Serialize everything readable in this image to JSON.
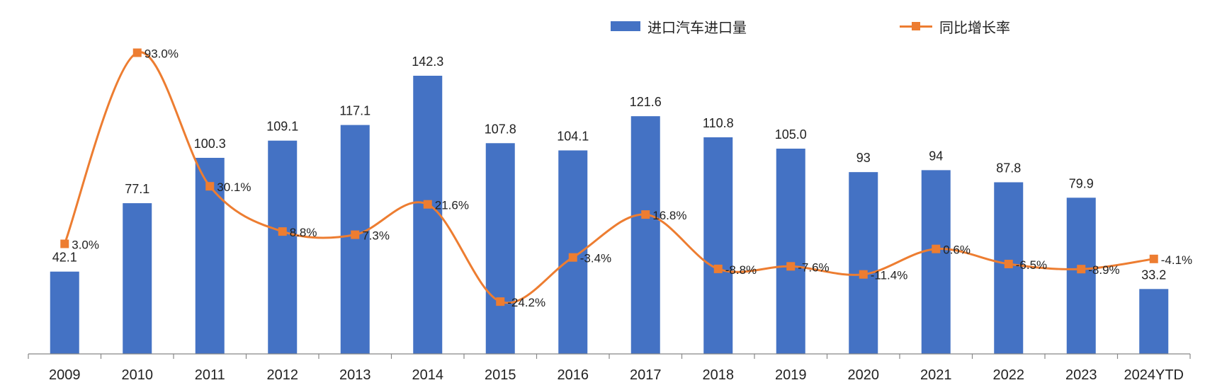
{
  "chart_data": {
    "type": "bar",
    "categories": [
      "2009",
      "2010",
      "2011",
      "2012",
      "2013",
      "2014",
      "2015",
      "2016",
      "2017",
      "2018",
      "2019",
      "2020",
      "2021",
      "2022",
      "2023",
      "2024YTD"
    ],
    "series": [
      {
        "name": "进口汽车进口量",
        "type": "bar",
        "color": "#4472c4",
        "values": [
          42.1,
          77.1,
          100.3,
          109.1,
          117.1,
          142.3,
          107.8,
          104.1,
          121.6,
          110.8,
          105.0,
          93,
          94,
          87.8,
          79.9,
          33.2
        ],
        "labels": [
          "42.1",
          "77.1",
          "100.3",
          "109.1",
          "117.1",
          "142.3",
          "107.8",
          "104.1",
          "121.6",
          "110.8",
          "105.0",
          "93",
          "94",
          "87.8",
          "79.9",
          "33.2"
        ]
      },
      {
        "name": "同比增长率",
        "type": "line",
        "color": "#ed7d31",
        "values": [
          3.0,
          93.0,
          30.1,
          8.8,
          7.3,
          21.6,
          -24.2,
          -3.4,
          16.8,
          -8.8,
          -7.6,
          -11.4,
          0.6,
          -6.5,
          -8.9,
          -4.1
        ],
        "labels": [
          "3.0%",
          "93.0%",
          "30.1%",
          "8.8%",
          "7.3%",
          "21.6%",
          "-24.2%",
          "-3.4%",
          "16.8%",
          "-8.8%",
          "-7.6%",
          "-11.4%",
          "0.6%",
          "-6.5%",
          "-8.9%",
          "-4.1%"
        ]
      }
    ],
    "ylim": [
      0,
      160
    ],
    "y2lim": [
      -40,
      100
    ],
    "grid": false,
    "legend_position": "top-right"
  }
}
